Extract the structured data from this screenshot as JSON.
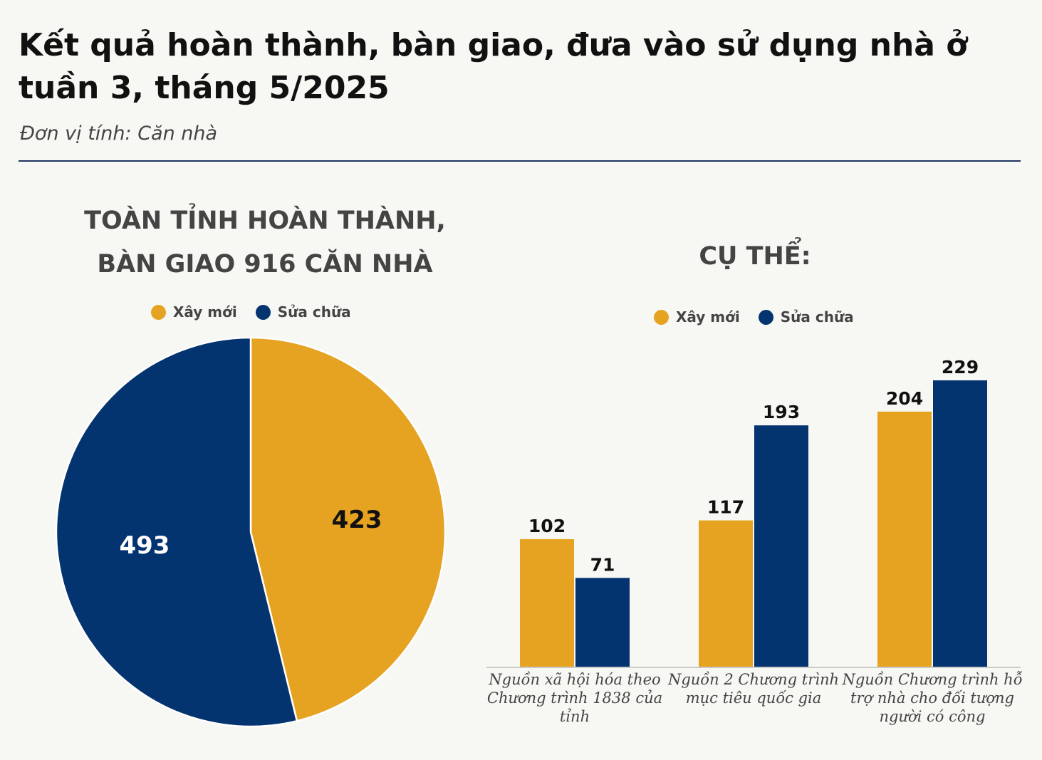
{
  "header": {
    "title": "Kết quả hoàn thành, bàn giao, đưa vào sử dụng nhà ở tuần 3, tháng 5/2025",
    "subtitle": "Đơn vị tính: Căn nhà"
  },
  "left_panel": {
    "heading_line1": "TOÀN TỈNH HOÀN THÀNH,",
    "heading_line2": "BÀN GIAO 916 CĂN NHÀ"
  },
  "right_panel": {
    "heading": "CỤ THỂ:"
  },
  "legend": {
    "new_label": "Xây mới",
    "repair_label": "Sửa chữa"
  },
  "colors": {
    "new": "#e6a321",
    "repair": "#04346f"
  },
  "chart_data": [
    {
      "type": "pie",
      "categories": [
        "Xây mới",
        "Sửa chữa"
      ],
      "values": [
        423,
        493
      ],
      "legend_position": "top"
    },
    {
      "type": "bar",
      "categories": [
        [
          "Nguồn xã hội hóa theo",
          "Chương trình 1838 của",
          "tỉnh"
        ],
        [
          "Nguồn 2 Chương trình",
          "mục tiêu quốc gia"
        ],
        [
          "Nguồn Chương trình hỗ",
          "trợ nhà cho đối tượng",
          "người có công"
        ]
      ],
      "series": [
        {
          "name": "Xây mới",
          "values": [
            102,
            117,
            204
          ]
        },
        {
          "name": "Sửa chữa",
          "values": [
            71,
            193,
            229
          ]
        }
      ],
      "legend_position": "top",
      "grid": false
    }
  ]
}
